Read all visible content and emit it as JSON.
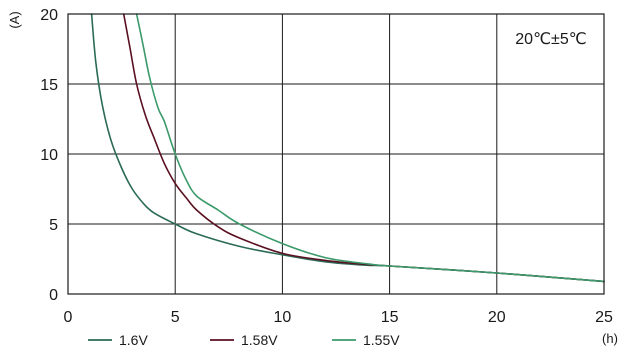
{
  "chart_data": {
    "type": "line",
    "xlabel": "(h)",
    "ylabel": "(A)",
    "xlim": [
      0,
      25
    ],
    "ylim": [
      0,
      20
    ],
    "x_ticks": [
      0,
      5,
      10,
      15,
      20,
      25
    ],
    "y_ticks": [
      0,
      5,
      10,
      15,
      20
    ],
    "grid": true,
    "annotation": "20℃±5℃",
    "legend_position": "bottom",
    "series": [
      {
        "name": "1.6V",
        "color": "#2b6a57",
        "x": [
          1.1,
          1.3,
          1.6,
          2.0,
          2.5,
          3.0,
          3.5,
          4.0,
          5.0,
          6.0,
          8.0,
          10.0,
          12.0,
          14.0,
          15.0,
          20.0,
          25.0
        ],
        "y": [
          20,
          16.5,
          13.5,
          11.0,
          9.0,
          7.5,
          6.5,
          5.8,
          5.0,
          4.3,
          3.4,
          2.8,
          2.3,
          2.05,
          2.0,
          1.5,
          0.9
        ]
      },
      {
        "name": "1.58V",
        "color": "#5a1020",
        "x": [
          2.6,
          2.9,
          3.2,
          3.6,
          4.0,
          4.5,
          5.0,
          5.5,
          6.0,
          7.0,
          8.0,
          10.0,
          12.0,
          14.0,
          15.0,
          20.0,
          25.0
        ],
        "y": [
          20,
          17.5,
          15.0,
          12.8,
          11.2,
          9.3,
          7.9,
          6.9,
          6.0,
          4.8,
          4.0,
          2.9,
          2.4,
          2.1,
          2.0,
          1.5,
          0.9
        ]
      },
      {
        "name": "1.55V",
        "color": "#3c9a6a",
        "x": [
          3.2,
          3.5,
          3.8,
          4.2,
          4.5,
          5.0,
          5.5,
          6.0,
          7.0,
          8.0,
          10.0,
          12.0,
          14.0,
          15.0,
          20.0,
          25.0
        ],
        "y": [
          20,
          17.8,
          15.5,
          13.3,
          12.3,
          10.0,
          8.2,
          7.0,
          6.0,
          5.0,
          3.6,
          2.6,
          2.15,
          2.0,
          1.5,
          0.9
        ]
      }
    ]
  }
}
